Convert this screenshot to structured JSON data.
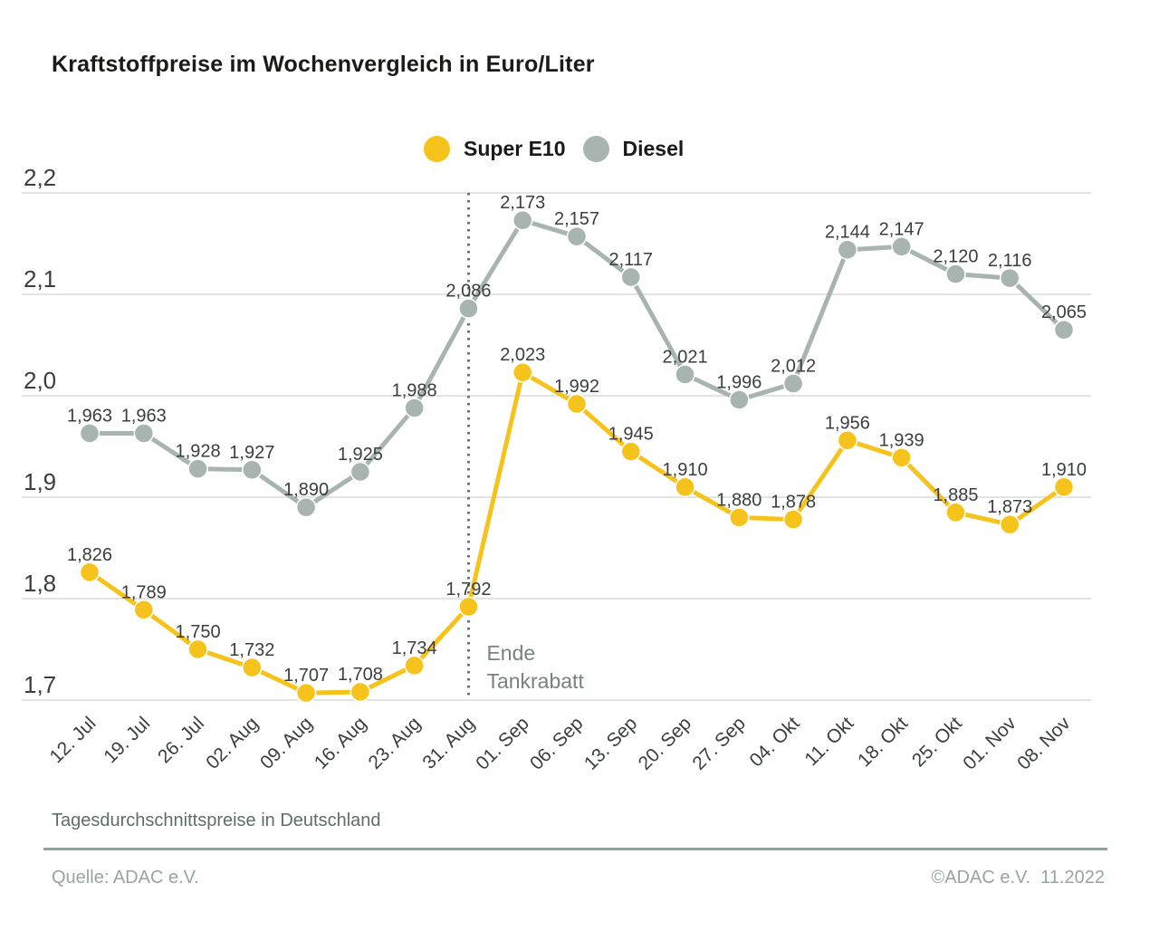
{
  "title": "Kraftstoffpreise im Wochenvergleich in Euro/Liter",
  "legend": [
    {
      "label": "Super E10",
      "color": "#F6C31C"
    },
    {
      "label": "Diesel",
      "color": "#A8B4B0"
    }
  ],
  "footer": {
    "subtitle": "Tagesdurchschnittspreise in Deutschland",
    "source": "Quelle: ADAC e.V.",
    "copyright": "©ADAC e.V.  11.2022"
  },
  "chart_data": {
    "type": "line",
    "title": "Kraftstoffpreise im Wochenvergleich in Euro/Liter",
    "categories": [
      "12. Jul",
      "19. Jul",
      "26. Jul",
      "02. Aug",
      "09. Aug",
      "16. Aug",
      "23. Aug",
      "31. Aug",
      "01. Sep",
      "06. Sep",
      "13. Sep",
      "20. Sep",
      "27. Sep",
      "04. Okt",
      "11. Okt",
      "18. Okt",
      "25. Okt",
      "01. Nov",
      "08. Nov"
    ],
    "series": [
      {
        "name": "Super E10",
        "color": "#F6C31C",
        "values": [
          1.826,
          1.789,
          1.75,
          1.732,
          1.707,
          1.708,
          1.734,
          1.792,
          2.023,
          1.992,
          1.945,
          1.91,
          1.88,
          1.878,
          1.956,
          1.939,
          1.885,
          1.873,
          1.91
        ]
      },
      {
        "name": "Diesel",
        "color": "#A8B4B0",
        "values": [
          1.963,
          1.963,
          1.928,
          1.927,
          1.89,
          1.925,
          1.988,
          2.086,
          2.173,
          2.157,
          2.117,
          2.021,
          1.996,
          2.012,
          2.144,
          2.147,
          2.12,
          2.116,
          2.065
        ]
      }
    ],
    "xlabel": "",
    "ylabel": "",
    "ylim": [
      1.7,
      2.2
    ],
    "yticks": [
      1.7,
      1.8,
      1.9,
      2.0,
      2.1,
      2.2
    ],
    "grid": true,
    "legend_position": "top-center",
    "value_labels": true,
    "value_decimals": 3,
    "tick_decimals": 1,
    "decimal_separator": ",",
    "annotation": {
      "lines": [
        "Ende",
        "Tankrabatt"
      ],
      "x_category": "31. Aug",
      "color": "#76837F"
    },
    "colors": {
      "grid": "#CFD4D2",
      "tick_text": "#3A3F3E",
      "label_text": "#3A3F3E",
      "dotted_line": "#67716F"
    }
  }
}
